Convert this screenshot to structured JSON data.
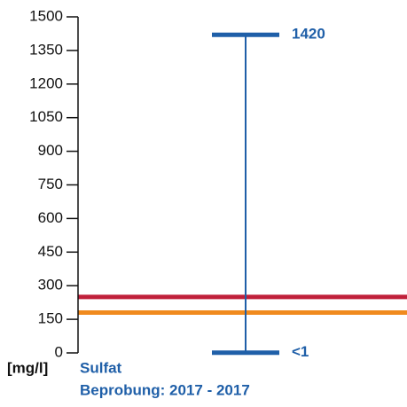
{
  "chart_data": {
    "type": "range",
    "title": "Sulfat",
    "subtitle": "Beprobung: 2017 - 2017",
    "ylabel": "[mg/l]",
    "values": [
      1,
      1420
    ],
    "value_labels": [
      "<1",
      "1420"
    ],
    "color": "#1f5fa8",
    "reference_lines": [
      {
        "value": 250,
        "color": "#c0203a"
      },
      {
        "value": 180,
        "color": "#f08a1e"
      }
    ],
    "ylim": [
      0,
      1500
    ],
    "yticks": [
      0,
      150,
      300,
      450,
      600,
      750,
      900,
      1050,
      1200,
      1350,
      1500
    ]
  }
}
